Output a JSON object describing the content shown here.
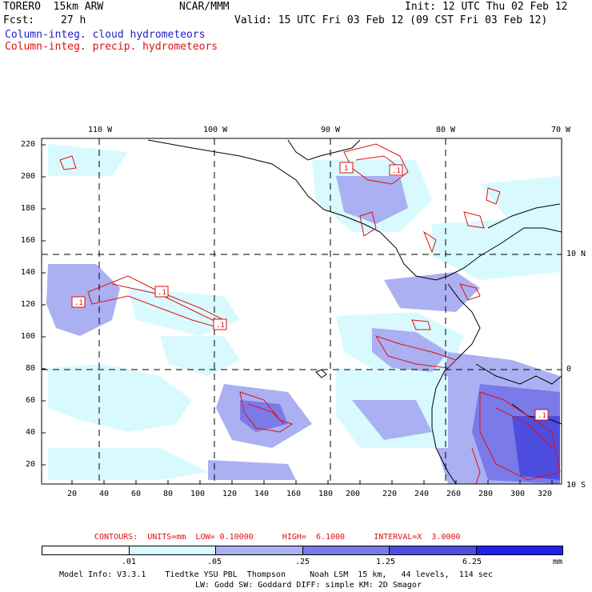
{
  "header": {
    "model": "TORERO  15km ARW",
    "center": "NCAR/MMM",
    "init": "Init: 12 UTC Thu 02 Feb 12",
    "fcst_label": "Fcst:",
    "fcst_value": "27 h",
    "valid": "Valid: 15 UTC Fri 03 Feb 12 (09 CST Fri 03 Feb 12)",
    "field1": "Column-integ. cloud hydrometeors",
    "field2": "Column-integ. precip. hydrometeors"
  },
  "lon_labels": [
    "110 W",
    "100 W",
    "90 W",
    "80 W",
    "70 W"
  ],
  "lat_labels": [
    "10 N",
    "0",
    "10 S"
  ],
  "y_ticks": [
    "220",
    "200",
    "180",
    "160",
    "140",
    "120",
    "100",
    "80",
    "60",
    "40",
    "20"
  ],
  "x_ticks": [
    "20",
    "40",
    "60",
    "80",
    "100",
    "120",
    "140",
    "160",
    "180",
    "200",
    "220",
    "240",
    "260",
    "280",
    "300",
    "320"
  ],
  "contours": {
    "text": "CONTOURS:  UNITS=mm  LOW= 0.10000      HIGH=  6.1000      INTERVAL=X  3.0000"
  },
  "colorbar": {
    "colors": [
      "#ffffff",
      "#d8fafe",
      "#aab0f2",
      "#7a7ae8",
      "#4d4de0",
      "#2020ee"
    ],
    "labels": [
      ".01",
      ".05",
      ".25",
      "1.25",
      "6.25"
    ],
    "unit": "mm"
  },
  "contour_labels": [
    ".1",
    ".1",
    ".1",
    "1",
    ".1",
    ".1"
  ],
  "footer": {
    "line1": "Model Info: V3.3.1    Tiedtke YSU PBL  Thompson     Noah LSM  15 km,   44 levels,  114 sec",
    "line2": "LW: Godd SW: Goddard DIFF: simple KM: 2D Smagor"
  }
}
